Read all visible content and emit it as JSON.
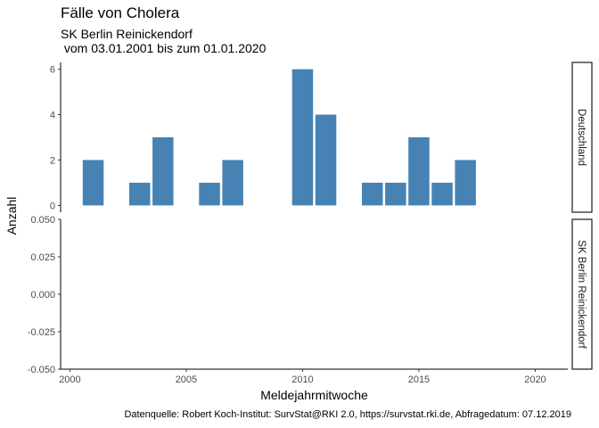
{
  "title": "Fälle von Cholera",
  "subtitle": "SK Berlin Reinickendorf\n vom 03.01.2001 bis zum 01.01.2020",
  "caption": "Datenquelle: Robert Koch-Institut: SurvStat@RKI 2.0, https://survstat.rki.de, Abfragedatum: 07.12.2019",
  "colors": {
    "bar": "#4682b4"
  },
  "chart_data": [
    {
      "type": "bar",
      "panel": "Deutschland",
      "xlabel": "Meldejahrmitwoche",
      "ylabel": "Anzahl",
      "x": [
        2001,
        2003,
        2004,
        2006,
        2007,
        2010,
        2011,
        2013,
        2014,
        2015,
        2016,
        2017
      ],
      "values": [
        2,
        1,
        3,
        1,
        2,
        6,
        4,
        1,
        1,
        3,
        1,
        2
      ],
      "xlim": [
        1999.6,
        2021.4
      ],
      "ylim": [
        -0.3,
        6.3
      ],
      "yticks": [
        0,
        2,
        4,
        6
      ],
      "xticks": [
        2000,
        2005,
        2010,
        2015,
        2020
      ]
    },
    {
      "type": "bar",
      "panel": "SK Berlin Reinickendorf",
      "xlabel": "Meldejahrmitwoche",
      "ylabel": "Anzahl",
      "x": [],
      "values": [],
      "xlim": [
        1999.6,
        2021.4
      ],
      "ylim": [
        -0.05,
        0.05
      ],
      "yticks": [
        "-0.050",
        "-0.025",
        "0.000",
        "0.025",
        "0.050"
      ],
      "xticks": [
        2000,
        2005,
        2010,
        2015,
        2020
      ]
    }
  ]
}
